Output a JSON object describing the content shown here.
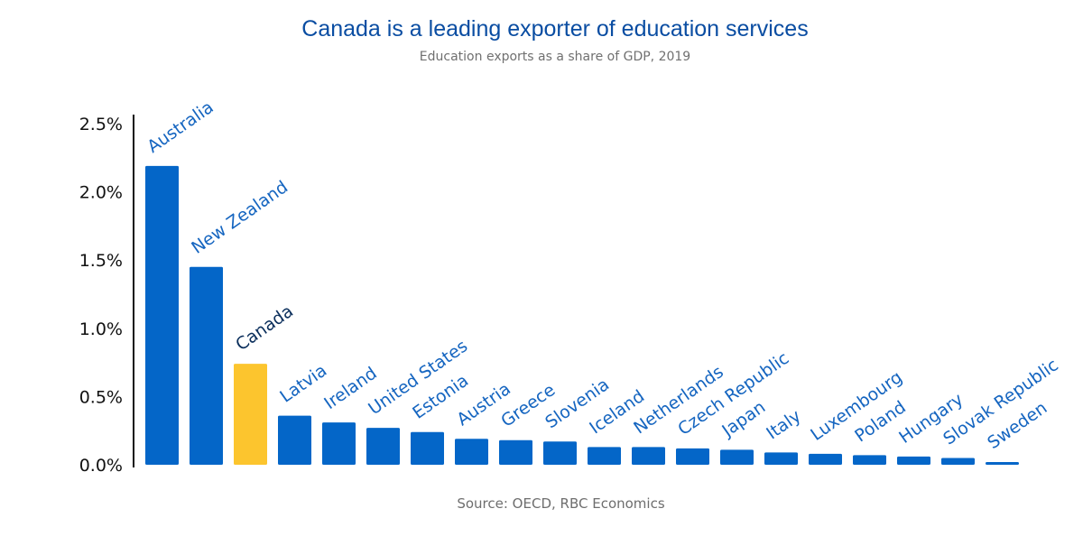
{
  "chart_data": {
    "type": "bar",
    "title": "Canada is a leading exporter of education services",
    "subtitle": "Education exports as a share of GDP, 2019",
    "source": "Source: OECD, RBC Economics",
    "xlabel": "",
    "ylabel": "",
    "ylim": [
      0,
      2.5
    ],
    "yticks": [
      "0.0%",
      "0.5%",
      "1.0%",
      "1.5%",
      "2.0%",
      "2.5%"
    ],
    "ytick_values": [
      0,
      0.5,
      1.0,
      1.5,
      2.0,
      2.5
    ],
    "grid": false,
    "categories": [
      "Australia",
      "New Zealand",
      "Canada",
      "Latvia",
      "Ireland",
      "United States",
      "Estonia",
      "Austria",
      "Greece",
      "Slovenia",
      "Iceland",
      "Netherlands",
      "Czech Republic",
      "Japan",
      "Italy",
      "Luxembourg",
      "Poland",
      "Hungary",
      "Slovak Republic",
      "Sweden"
    ],
    "values": [
      2.19,
      1.45,
      0.74,
      0.36,
      0.31,
      0.27,
      0.24,
      0.19,
      0.18,
      0.17,
      0.13,
      0.13,
      0.12,
      0.11,
      0.09,
      0.08,
      0.07,
      0.06,
      0.05,
      0.02
    ],
    "highlight": "Canada",
    "colors": {
      "bar": "#0466c8",
      "highlight_bar": "#fcc52e",
      "label": "#1565c0",
      "highlight_label": "#0b2f5c",
      "axis": "#111111"
    }
  }
}
